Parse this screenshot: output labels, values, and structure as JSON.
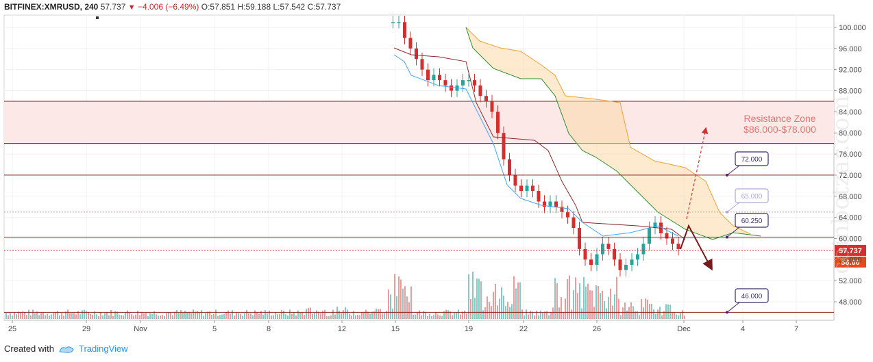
{
  "legend": {
    "symbol": "BITFINEX:XMRUSD, 240",
    "last": "57.737",
    "change": "−4.006 (−6.49%)",
    "open": "O:57.851",
    "high": "H:59.188",
    "low": "L:57.542",
    "close": "C:57.737"
  },
  "footer": {
    "created_with": "Created with",
    "brand": "TradingView"
  },
  "watermark": "coinbotzar.com",
  "colors": {
    "up": "#26a69a",
    "down": "#d32f2f",
    "zone": "#fde8e8",
    "cloud": "#fcd9a8",
    "annotation": "#3a2a6b",
    "resistance_text": "#e57373"
  },
  "chart_data": {
    "type": "candlestick",
    "x_ticks": [
      "25",
      "29",
      "Nov",
      "5",
      "8",
      "12",
      "15",
      "19",
      "22",
      "26",
      "Dec",
      "4",
      "7"
    ],
    "y_ticks": [
      100,
      96,
      92,
      88,
      84,
      80,
      76,
      72,
      68,
      64,
      60,
      56,
      52,
      48
    ],
    "ylim": [
      44,
      103
    ],
    "grid": true,
    "price_labels": {
      "last": "57.737",
      "level": "56.00"
    },
    "resistance_zone": {
      "label_line1": "Resistance Zone",
      "label_line2": "$86.000-$78.000",
      "top": 86,
      "bottom": 78
    },
    "levels": [
      {
        "label": "72.000",
        "value": 72.0,
        "style": "solid"
      },
      {
        "label": "65.000",
        "value": 65.0,
        "style": "dotted"
      },
      {
        "label": "60.250",
        "value": 60.25,
        "style": "solid"
      },
      {
        "label": "46.000",
        "value": 46.0,
        "style": "solid"
      }
    ],
    "current_price_line": 57.737,
    "series": [
      {
        "name": "close",
        "values": [
          101,
          101,
          101,
          98,
          96,
          94,
          92,
          90,
          91,
          90,
          89,
          88,
          89,
          90,
          90,
          89,
          87,
          86,
          84,
          80,
          75,
          72,
          70,
          69,
          70,
          69,
          67,
          66,
          67,
          66,
          65,
          64,
          62,
          58,
          56,
          55,
          57,
          59,
          58,
          56,
          54,
          55,
          56,
          57,
          59,
          62,
          63,
          61,
          60,
          59,
          58
        ]
      }
    ]
  }
}
